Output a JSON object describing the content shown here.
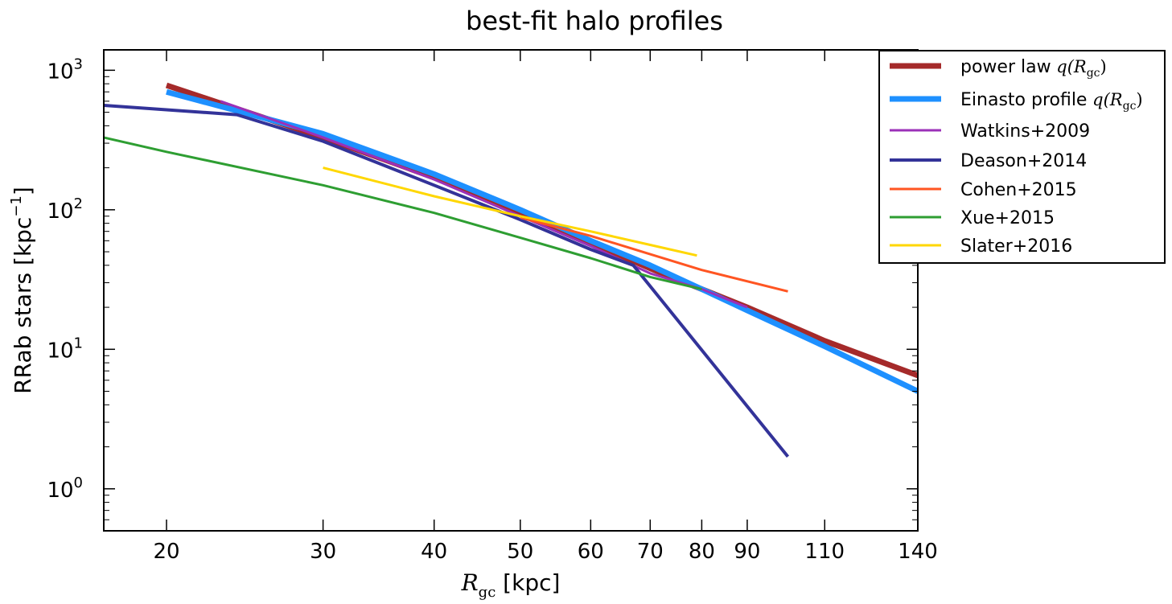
{
  "chart_data": {
    "type": "line",
    "title": "best-fit halo profiles",
    "xlabel": {
      "symbol": "R",
      "subscript": "gc",
      "unit": "[kpc]"
    },
    "ylabel": {
      "text": "RRab stars [kpc",
      "superscript": "−1",
      "close": "]"
    },
    "xscale": "log",
    "yscale": "log",
    "xlim": [
      17,
      140
    ],
    "ylim": [
      0.5,
      1400
    ],
    "x_ticks": [
      20,
      30,
      40,
      50,
      60,
      70,
      80,
      90,
      110,
      140
    ],
    "y_ticks": [
      {
        "value": 1,
        "base": "10",
        "exp": "0"
      },
      {
        "value": 10,
        "base": "10",
        "exp": "1"
      },
      {
        "value": 100,
        "base": "10",
        "exp": "2"
      },
      {
        "value": 1000,
        "base": "10",
        "exp": "3"
      }
    ],
    "grid": false,
    "legend_position": "top-right",
    "series": [
      {
        "name": "power law",
        "math": "q(R",
        "math_sub": "gc",
        "math_close": ")",
        "color": "#a52a2a",
        "width": 7,
        "x": [
          20,
          30,
          40,
          50,
          60,
          70,
          80,
          90,
          110,
          140
        ],
        "y": [
          780,
          330,
          170,
          95,
          58,
          38,
          27,
          20,
          11.5,
          6.5
        ]
      },
      {
        "name": "Einasto profile",
        "math": "q(R",
        "math_sub": "gc",
        "math_close": ")",
        "color": "#1e90ff",
        "width": 7,
        "x": [
          20,
          30,
          40,
          50,
          60,
          70,
          80,
          90,
          110,
          140
        ],
        "y": [
          700,
          350,
          180,
          100,
          60,
          40,
          27,
          19,
          10.5,
          5
        ]
      },
      {
        "name": "Watkins+2009",
        "color": "#9b30b8",
        "width": 3,
        "x": [
          23,
          30,
          40,
          50,
          60,
          70,
          80,
          90
        ],
        "y": [
          600,
          330,
          165,
          90,
          55,
          35,
          27,
          20
        ]
      },
      {
        "name": "Deason+2014",
        "color": "#333399",
        "width": 4,
        "x": [
          17,
          24,
          30,
          40,
          50,
          60,
          67,
          100
        ],
        "y": [
          560,
          480,
          310,
          150,
          85,
          52,
          40,
          1.7
        ]
      },
      {
        "name": "Cohen+2015",
        "color": "#ff5522",
        "width": 3,
        "x": [
          50,
          60,
          70,
          80,
          100
        ],
        "y": [
          88,
          65,
          48,
          37,
          26
        ]
      },
      {
        "name": "Xue+2015",
        "color": "#2e9e32",
        "width": 3,
        "x": [
          17,
          20,
          30,
          40,
          50,
          60,
          70,
          80
        ],
        "y": [
          330,
          260,
          150,
          95,
          63,
          45,
          33,
          27
        ]
      },
      {
        "name": "Slater+2016",
        "color": "#ffd700",
        "width": 3,
        "x": [
          30,
          40,
          50,
          60,
          70,
          79
        ],
        "y": [
          200,
          125,
          90,
          70,
          56,
          47
        ]
      }
    ]
  }
}
